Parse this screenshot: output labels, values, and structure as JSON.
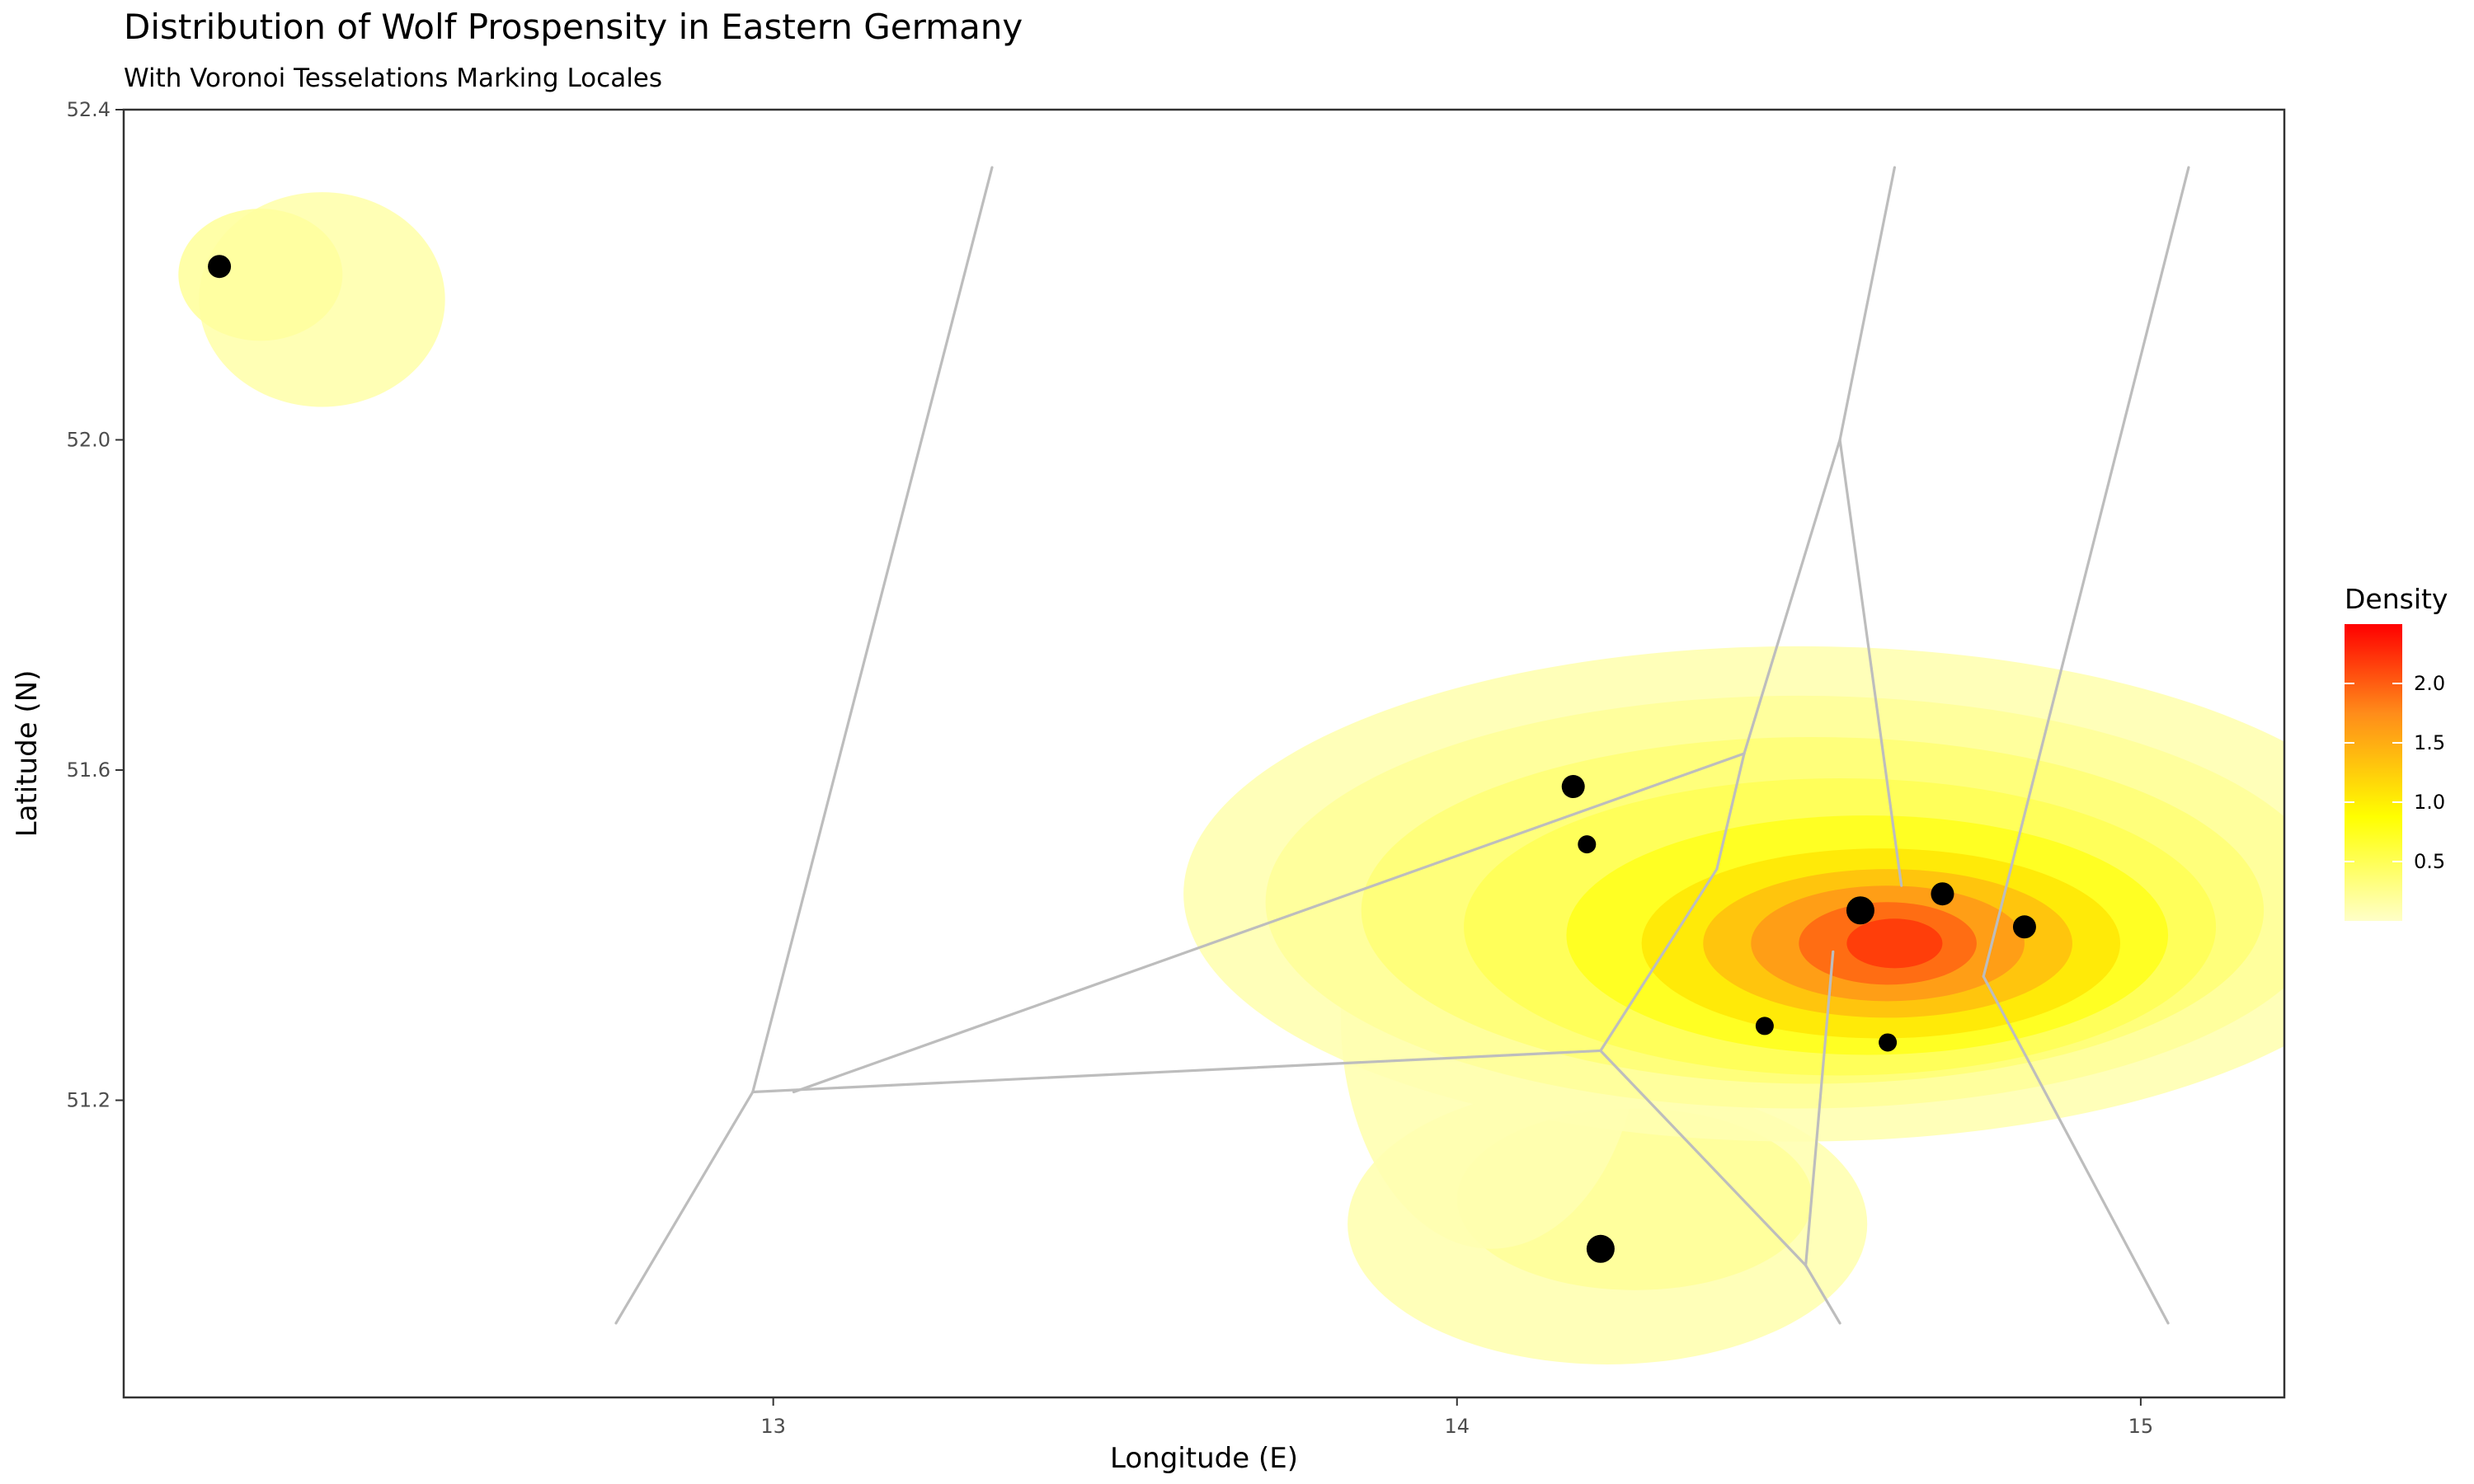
{
  "chart_data": {
    "type": "scatter",
    "title": "Distribution of Wolf Prospensity in Eastern Germany",
    "subtitle": "With Voronoi Tesselations Marking Locales",
    "xlabel": "Longitude (E)",
    "ylabel": "Latitude (N)",
    "xlim": [
      12.05,
      15.21
    ],
    "ylim": [
      50.84,
      52.4
    ],
    "x_ticks": [
      13,
      14,
      15
    ],
    "x_tick_labels": [
      "13",
      "14",
      "15"
    ],
    "y_ticks": [
      51.2,
      51.6,
      52.0,
      52.4
    ],
    "y_tick_labels": [
      "51.2",
      "51.6",
      "52.0",
      "52.4"
    ],
    "grid": false,
    "points": [
      {
        "x": 12.19,
        "y": 52.21,
        "size": "medium"
      },
      {
        "x": 14.17,
        "y": 51.58,
        "size": "medium"
      },
      {
        "x": 14.19,
        "y": 51.51,
        "size": "small"
      },
      {
        "x": 14.59,
        "y": 51.43,
        "size": "large"
      },
      {
        "x": 14.71,
        "y": 51.45,
        "size": "medium"
      },
      {
        "x": 14.83,
        "y": 51.41,
        "size": "medium"
      },
      {
        "x": 14.45,
        "y": 51.29,
        "size": "small"
      },
      {
        "x": 14.63,
        "y": 51.27,
        "size": "small"
      },
      {
        "x": 14.21,
        "y": 51.02,
        "size": "large"
      }
    ],
    "voronoi_edges": [
      [
        [
          13.32,
          52.33
        ],
        [
          12.97,
          51.21
        ]
      ],
      [
        [
          12.97,
          51.21
        ],
        [
          12.77,
          50.93
        ]
      ],
      [
        [
          12.97,
          51.21
        ],
        [
          14.21,
          51.26
        ]
      ],
      [
        [
          13.03,
          51.21
        ],
        [
          14.42,
          51.62
        ]
      ],
      [
        [
          14.21,
          51.26
        ],
        [
          14.38,
          51.48
        ]
      ],
      [
        [
          14.38,
          51.48
        ],
        [
          14.42,
          51.62
        ]
      ],
      [
        [
          14.42,
          51.62
        ],
        [
          14.56,
          52.0
        ]
      ],
      [
        [
          14.56,
          52.0
        ],
        [
          14.64,
          52.33
        ]
      ],
      [
        [
          14.56,
          52.0
        ],
        [
          14.65,
          51.46
        ]
      ],
      [
        [
          14.21,
          51.26
        ],
        [
          14.51,
          51.0
        ]
      ],
      [
        [
          14.51,
          51.0
        ],
        [
          14.56,
          50.93
        ]
      ],
      [
        [
          14.51,
          51.0
        ],
        [
          14.55,
          51.38
        ]
      ],
      [
        [
          15.07,
          52.33
        ],
        [
          14.77,
          51.35
        ]
      ],
      [
        [
          14.77,
          51.35
        ],
        [
          15.04,
          50.93
        ]
      ]
    ],
    "density_legend": {
      "title": "Density",
      "ticks": [
        0.5,
        1.0,
        1.5,
        2.0
      ],
      "tick_labels": [
        "0.5",
        "1.0",
        "1.5",
        "2.0"
      ],
      "range": [
        0.0,
        2.5
      ],
      "colors": [
        "#ffffc8",
        "#ffff00",
        "#ff8c1a",
        "#ff0000"
      ]
    },
    "density_blobs": [
      {
        "x": 14.22,
        "y": 51.05,
        "rx": 0.38,
        "ry": 0.17,
        "level": 0.1
      },
      {
        "x": 14.26,
        "y": 51.08,
        "rx": 0.26,
        "ry": 0.11,
        "level": 0.2
      },
      {
        "x": 14.05,
        "y": 51.3,
        "rx": 0.22,
        "ry": 0.28,
        "level": 0.1
      },
      {
        "x": 14.5,
        "y": 51.45,
        "rx": 0.9,
        "ry": 0.3,
        "level": 0.1
      },
      {
        "x": 14.5,
        "y": 51.44,
        "rx": 0.78,
        "ry": 0.25,
        "level": 0.2
      },
      {
        "x": 14.52,
        "y": 51.43,
        "rx": 0.66,
        "ry": 0.21,
        "level": 0.35
      },
      {
        "x": 14.56,
        "y": 51.41,
        "rx": 0.55,
        "ry": 0.18,
        "level": 0.5
      },
      {
        "x": 14.6,
        "y": 51.4,
        "rx": 0.44,
        "ry": 0.145,
        "level": 0.75
      },
      {
        "x": 14.62,
        "y": 51.39,
        "rx": 0.35,
        "ry": 0.115,
        "level": 1.05
      },
      {
        "x": 14.63,
        "y": 51.39,
        "rx": 0.27,
        "ry": 0.09,
        "level": 1.35
      },
      {
        "x": 14.63,
        "y": 51.39,
        "rx": 0.2,
        "ry": 0.07,
        "level": 1.65
      },
      {
        "x": 14.63,
        "y": 51.39,
        "rx": 0.13,
        "ry": 0.05,
        "level": 1.95
      },
      {
        "x": 14.64,
        "y": 51.39,
        "rx": 0.07,
        "ry": 0.03,
        "level": 2.2
      },
      {
        "x": 12.34,
        "y": 52.17,
        "rx": 0.18,
        "ry": 0.13,
        "level": 0.12
      },
      {
        "x": 12.25,
        "y": 52.2,
        "rx": 0.12,
        "ry": 0.08,
        "level": 0.18
      }
    ]
  }
}
